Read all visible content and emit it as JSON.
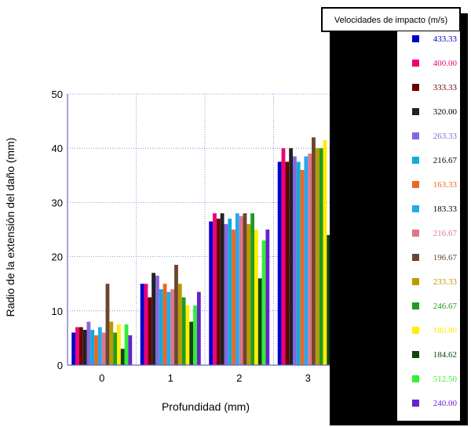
{
  "chart_data": {
    "type": "bar",
    "categories": [
      "0",
      "1",
      "2",
      "3"
    ],
    "xlabel": "Profundidad (mm)",
    "ylabel": "Radio de la extensión del daño (mm)",
    "ylim": [
      0,
      50
    ],
    "yticks": [
      "0",
      "10",
      "20",
      "30",
      "40",
      "50"
    ],
    "grid": true,
    "legend_position": "right",
    "legend_title": "Velocidades de impacto (m/s)",
    "series": [
      {
        "name": "433.33",
        "color": "#0000cc",
        "label_color": "#0000cc",
        "values": [
          6,
          15,
          26.5,
          37.5
        ]
      },
      {
        "name": "400.00",
        "color": "#ee0077",
        "label_color": "#ee0077",
        "values": [
          7,
          15,
          28,
          40
        ]
      },
      {
        "name": "333.33",
        "color": "#6b0000",
        "label_color": "#6b0000",
        "values": [
          7,
          12.5,
          27,
          37.5
        ]
      },
      {
        "name": "320.00",
        "color": "#222222",
        "label_color": "#000000",
        "values": [
          6.5,
          17,
          28,
          40
        ]
      },
      {
        "name": "263.33",
        "color": "#8866dd",
        "label_color": "#8866dd",
        "values": [
          8,
          16.5,
          26,
          38.5
        ]
      },
      {
        "name": "216.67",
        "color": "#11aadd",
        "label_color": "#000000",
        "values": [
          6.5,
          14,
          27,
          37.5
        ]
      },
      {
        "name": "163.33",
        "color": "#ee6622",
        "label_color": "#ee6622",
        "values": [
          5.5,
          15,
          25,
          36
        ]
      },
      {
        "name": "183.33",
        "color": "#22aaee",
        "label_color": "#000000",
        "values": [
          7,
          13.5,
          28,
          38.5
        ]
      },
      {
        "name": "216.67",
        "color": "#dd7788",
        "label_color": "#dd7788",
        "values": [
          6,
          14,
          27.5,
          39
        ]
      },
      {
        "name": "196.67",
        "color": "#6b4433",
        "label_color": "#6b4433",
        "values": [
          15,
          18.5,
          28,
          42
        ]
      },
      {
        "name": "233.33",
        "color": "#bb9900",
        "label_color": "#bb9900",
        "values": [
          8,
          15,
          26,
          40
        ]
      },
      {
        "name": "246.67",
        "color": "#229922",
        "label_color": "#229922",
        "values": [
          6,
          12.5,
          28,
          40
        ]
      },
      {
        "name": "180.00",
        "color": "#ffee00",
        "label_color": "#ffee00",
        "values": [
          7.5,
          11,
          25,
          41.5
        ]
      },
      {
        "name": "184.62",
        "color": "#114411",
        "label_color": "#114411",
        "values": [
          3,
          8,
          16,
          24
        ]
      },
      {
        "name": "512.50",
        "color": "#33ee33",
        "label_color": "#33ee33",
        "values": [
          7.5,
          11,
          23,
          36.5
        ]
      },
      {
        "name": "240.00",
        "color": "#6622cc",
        "label_color": "#6622cc",
        "values": [
          5.5,
          13.5,
          25,
          38
        ]
      }
    ]
  }
}
